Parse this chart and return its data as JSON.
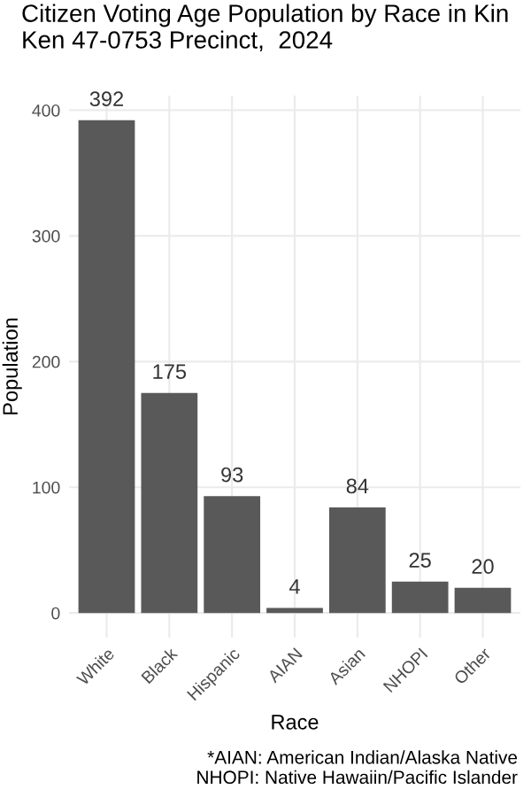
{
  "chart_data": {
    "type": "bar",
    "title": "Citizen Voting Age Population by Race in Kin\nKen 47-0753 Precinct,  2024",
    "xlabel": "Race",
    "ylabel": "Population",
    "categories": [
      "White",
      "Black",
      "Hispanic",
      "AIAN",
      "Asian",
      "NHOPI",
      "Other"
    ],
    "values": [
      392,
      175,
      93,
      4,
      84,
      25,
      20
    ],
    "color": "#595959",
    "data_labels": true,
    "ylim": [
      -19.6,
      411.6
    ],
    "yticks": [
      0,
      100,
      200,
      300,
      400
    ],
    "grid": true,
    "annotations": [
      "*AIAN: American Indian/Alaska Native\nNHOPI: Native Hawaiin/Pacific Islander"
    ]
  }
}
